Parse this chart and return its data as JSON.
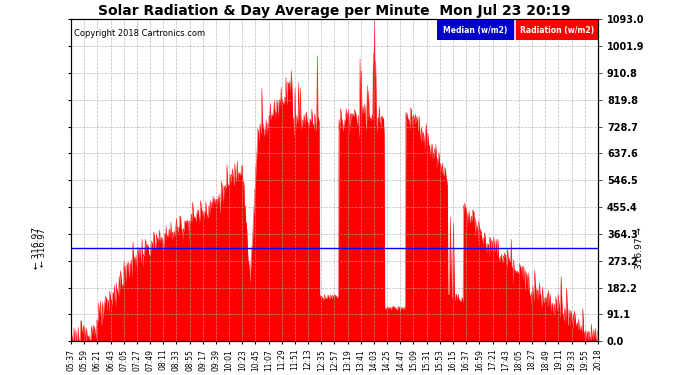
{
  "title": "Solar Radiation & Day Average per Minute  Mon Jul 23 20:19",
  "copyright": "Copyright 2018 Cartronics.com",
  "median_value": 316.97,
  "ylim": [
    0,
    1093.0
  ],
  "yticks": [
    0.0,
    91.1,
    182.2,
    273.2,
    364.3,
    455.4,
    546.5,
    637.6,
    728.7,
    819.8,
    910.8,
    1001.9,
    1093.0
  ],
  "ytick_labels": [
    "0.0",
    "91.1",
    "182.2",
    "273.2",
    "364.3",
    "455.4",
    "546.5",
    "637.6",
    "728.7",
    "819.8",
    "910.8",
    "1001.9",
    "1093.0"
  ],
  "fill_color": "#FF0000",
  "line_color": "#FF0000",
  "median_line_color": "#0000FF",
  "bg_color": "#FFFFFF",
  "grid_color": "#AAAAAA",
  "legend_median_bg": "#0000FF",
  "legend_radiation_bg": "#FF0000",
  "xtick_labels": [
    "05:37",
    "05:59",
    "06:21",
    "06:43",
    "07:05",
    "07:27",
    "07:49",
    "08:11",
    "08:33",
    "08:55",
    "09:17",
    "09:39",
    "10:01",
    "10:23",
    "10:45",
    "11:07",
    "11:29",
    "11:51",
    "12:13",
    "12:35",
    "12:57",
    "13:19",
    "13:41",
    "14:03",
    "14:25",
    "14:47",
    "15:09",
    "15:31",
    "15:53",
    "16:15",
    "16:37",
    "16:59",
    "17:21",
    "17:43",
    "18:05",
    "18:27",
    "18:49",
    "19:11",
    "19:33",
    "19:55",
    "20:18"
  ],
  "num_points": 876
}
